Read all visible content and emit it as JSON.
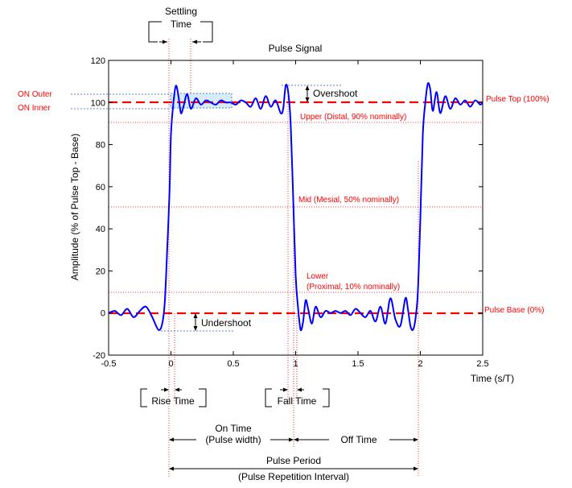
{
  "chart_data": {
    "type": "line",
    "title": "Pulse Signal",
    "xlabel": "Time (s/T)",
    "ylabel": "Amplitude (% of Pulse Top - Base)",
    "xlim": [
      -0.5,
      2.5
    ],
    "ylim": [
      -20,
      120
    ],
    "x_ticks": [
      -0.5,
      0,
      0.5,
      1,
      1.5,
      2,
      2.5
    ],
    "x_tick_labels": [
      "-0.5",
      "0",
      "0.5",
      "1",
      "1.5",
      "2",
      "2.5"
    ],
    "y_ticks": [
      -20,
      0,
      20,
      40,
      60,
      80,
      100,
      120
    ],
    "y_tick_labels": [
      "-20",
      "0",
      "20",
      "40",
      "60",
      "80",
      "100",
      "120"
    ],
    "grid": false,
    "series": [
      {
        "color": "#0000ff",
        "x": [
          -0.5,
          -0.45,
          -0.4,
          -0.35,
          -0.3,
          -0.25,
          -0.2,
          -0.15,
          -0.1,
          -0.07,
          -0.05,
          -0.03,
          -0.01,
          0.0,
          0.02,
          0.04,
          0.06,
          0.08,
          0.1,
          0.13,
          0.16,
          0.2,
          0.24,
          0.28,
          0.32,
          0.36,
          0.4,
          0.44,
          0.48,
          0.52,
          0.56,
          0.6,
          0.64,
          0.68,
          0.72,
          0.76,
          0.8,
          0.84,
          0.88,
          0.9,
          0.92,
          0.94,
          0.96,
          0.98,
          1.0,
          1.02,
          1.04,
          1.06,
          1.08,
          1.1,
          1.13,
          1.16,
          1.2,
          1.24,
          1.28,
          1.32,
          1.36,
          1.4,
          1.44,
          1.48,
          1.52,
          1.56,
          1.6,
          1.64,
          1.68,
          1.72,
          1.76,
          1.8,
          1.84,
          1.88,
          1.9,
          1.92,
          1.94,
          1.96,
          1.98,
          2.0,
          2.02,
          2.04,
          2.06,
          2.08,
          2.1,
          2.13,
          2.16,
          2.2,
          2.24,
          2.28,
          2.32,
          2.36,
          2.4,
          2.44,
          2.48,
          2.5
        ],
        "y": [
          0,
          1,
          -1,
          2,
          -2,
          1,
          3,
          -2,
          -8,
          -5,
          5,
          30,
          60,
          85,
          100,
          108,
          103,
          95,
          98,
          104,
          97,
          102,
          99,
          101,
          100,
          99,
          101,
          100,
          100,
          99,
          101,
          100,
          98,
          102,
          97,
          103,
          98,
          101,
          95,
          97,
          108,
          105,
          90,
          55,
          18,
          2,
          -8,
          -4,
          6,
          2,
          -5,
          3,
          -2,
          1,
          0,
          1,
          0,
          1,
          -1,
          2,
          0,
          -2,
          1,
          -4,
          3,
          -5,
          7,
          -3,
          -6,
          7,
          2,
          -6,
          -8,
          -3,
          10,
          45,
          85,
          100,
          109,
          106,
          96,
          105,
          95,
          103,
          97,
          102,
          99,
          101,
          98,
          101,
          99,
          100
        ]
      }
    ],
    "right_labels": [
      "Pulse Top (100%)",
      "Upper (Distal, 90% nominally)",
      "Mid (Mesial, 50% nominally)",
      "Lower",
      "(Proximal, 10% nominally)",
      "Pulse Base  (0%)"
    ],
    "left_labels": [
      "ON Outer",
      "ON Inner"
    ],
    "annotations": {
      "settling_time": [
        "Settling",
        "Time"
      ],
      "overshoot": "Overshoot",
      "undershoot": "Undershoot",
      "rise_time": "Rise Time",
      "fall_time": "Fall Time",
      "on_time": [
        "On Time",
        "(Pulse width)"
      ],
      "off_time": "Off Time",
      "pulse_period": [
        "Pulse Period",
        "(Pulse Repetition Interval)"
      ]
    },
    "colors": {
      "signal": "#0000ff",
      "reference": "#ff0000",
      "band": "#d6ecfa",
      "band_border": "#1f5fc8"
    }
  }
}
